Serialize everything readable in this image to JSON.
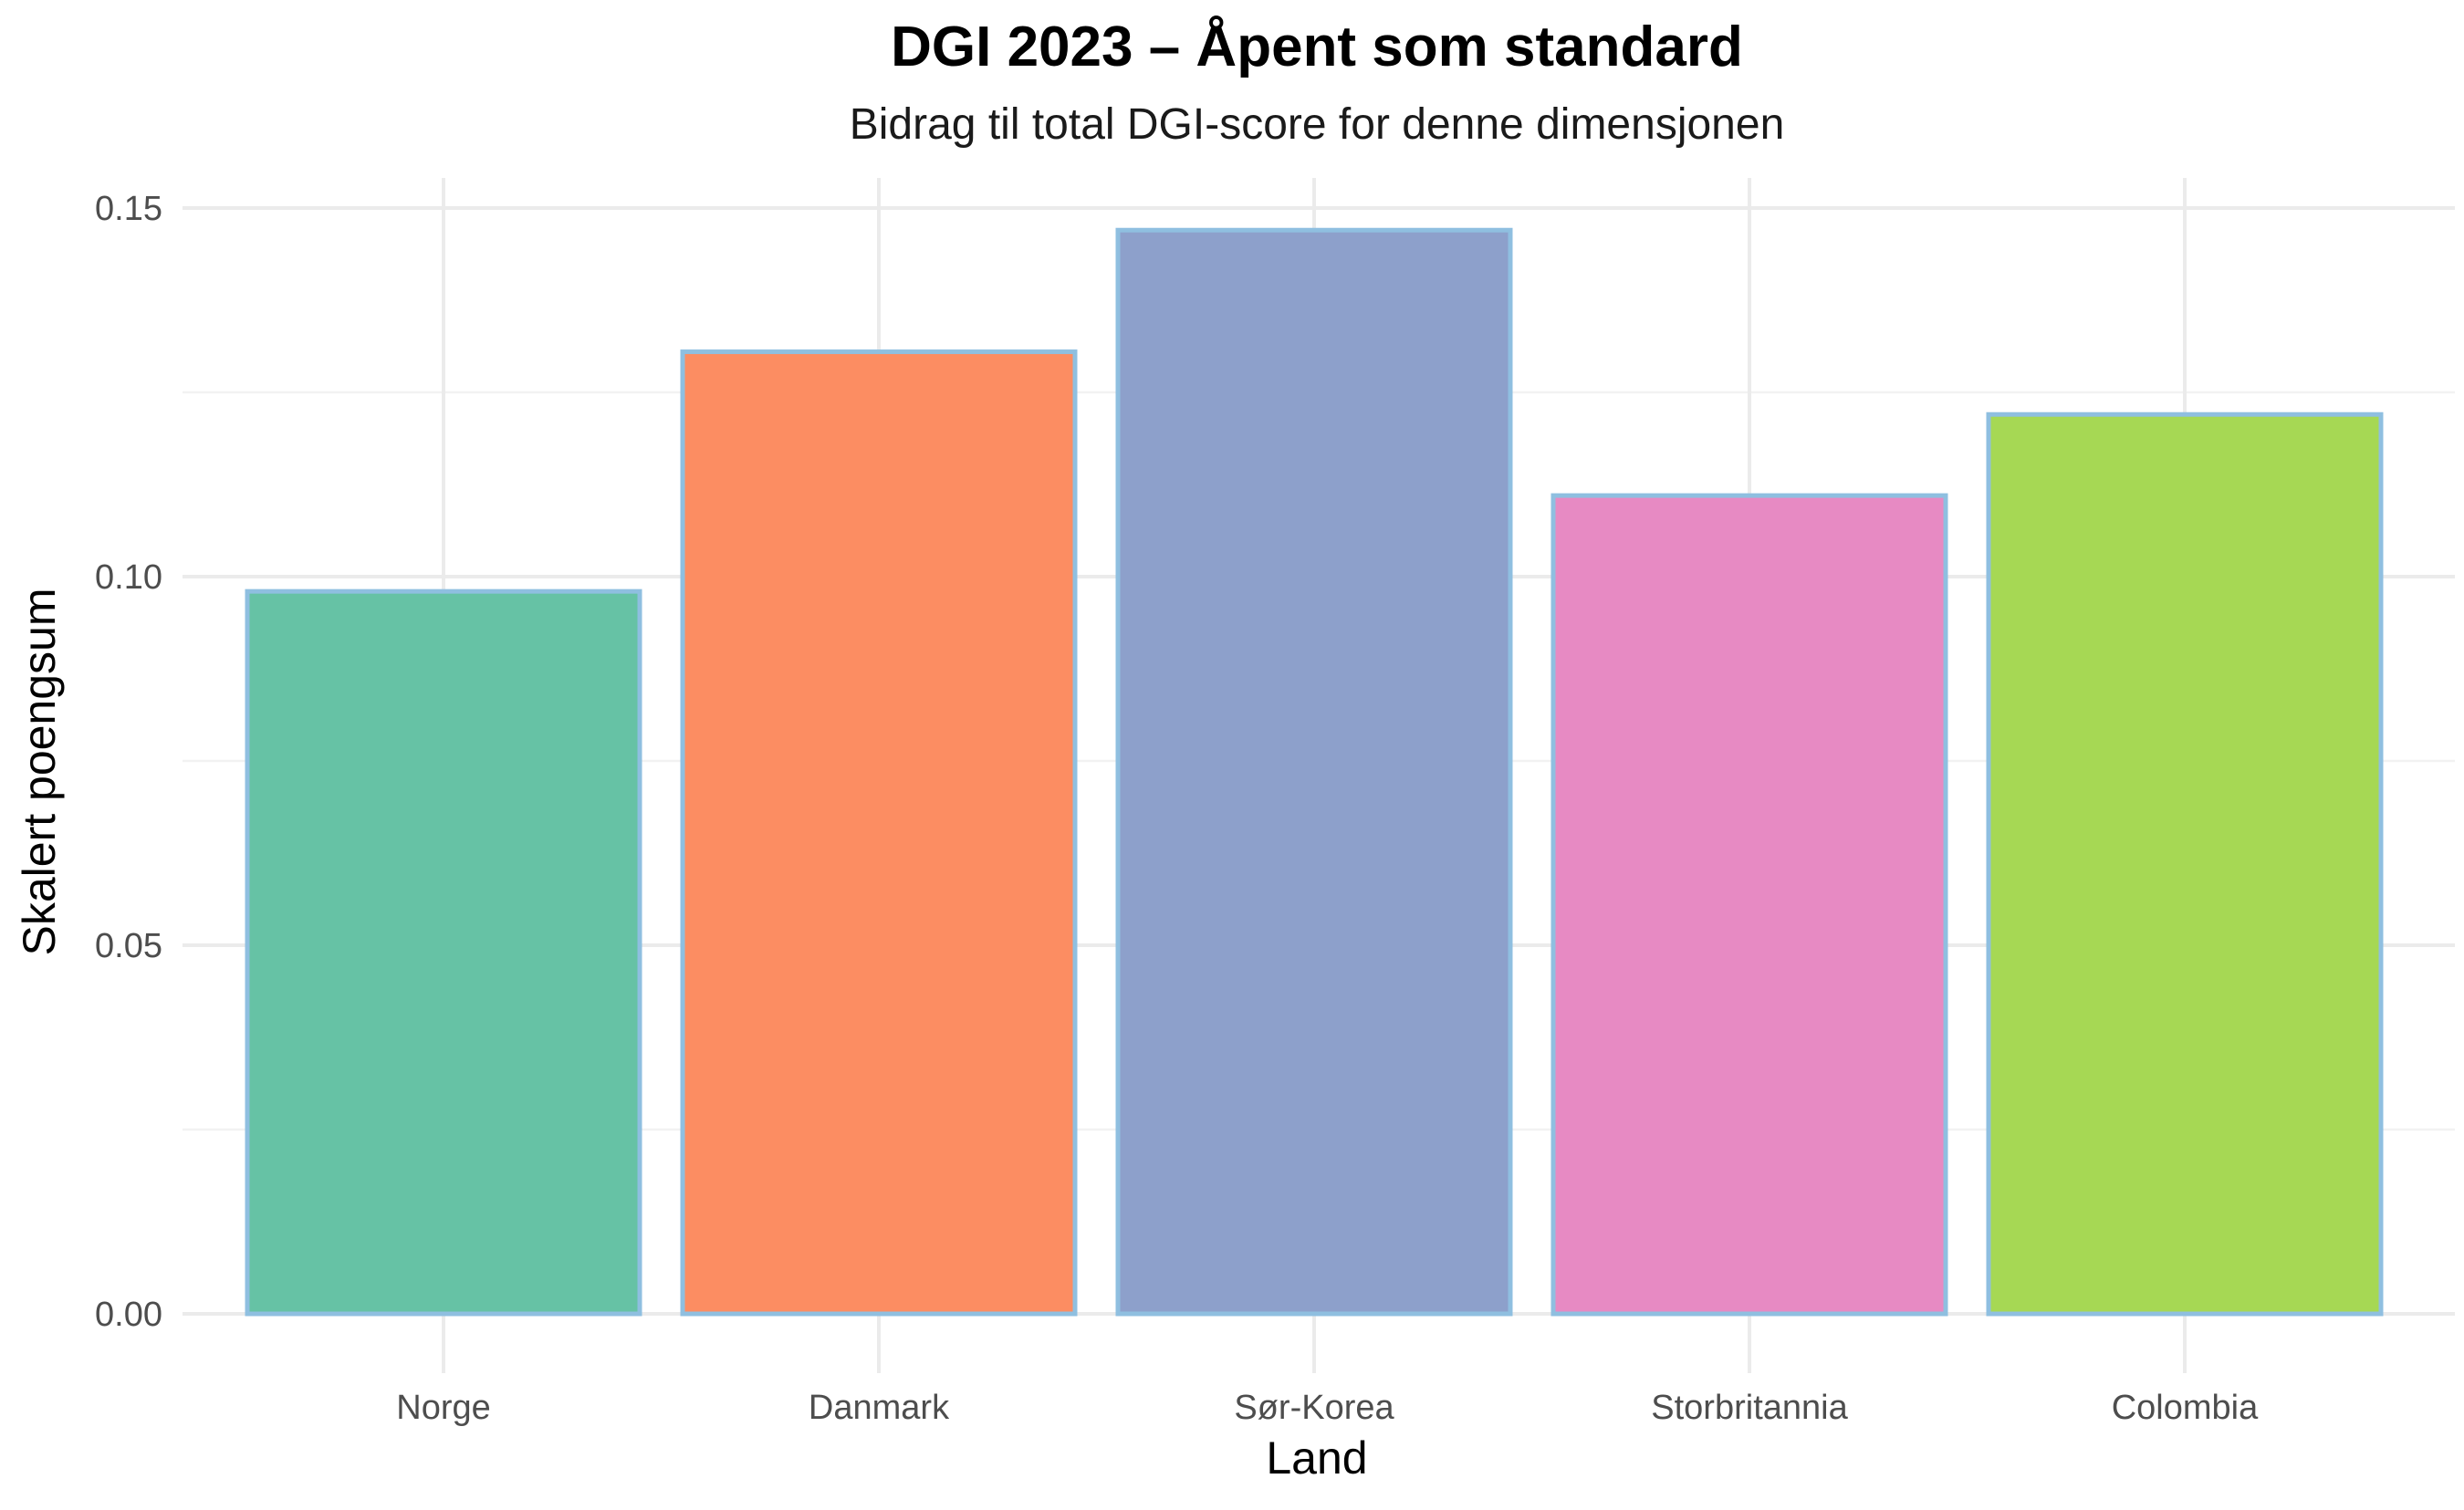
{
  "chart_data": {
    "type": "bar",
    "title": "DGI 2023 – Åpent som standard",
    "subtitle": "Bidrag til total DGI-score for denne dimensjonen",
    "xlabel": "Land",
    "ylabel": "Skalert poengsum",
    "categories": [
      "Norge",
      "Danmark",
      "Sør-Korea",
      "Storbritannia",
      "Colombia"
    ],
    "values": [
      0.098,
      0.1305,
      0.147,
      0.111,
      0.122
    ],
    "colors": [
      "#66c2a5",
      "#fc8d62",
      "#8da0cb",
      "#e78ac3",
      "#a6d854"
    ],
    "bar_outline_color": "#8fbfe0",
    "ylim": [
      0,
      0.155
    ],
    "yticks": [
      0,
      0.05,
      0.1,
      0.15
    ],
    "ytick_labels": [
      "0.00",
      "0.05",
      "0.10",
      "0.15"
    ],
    "grid": true,
    "legend": "none"
  }
}
